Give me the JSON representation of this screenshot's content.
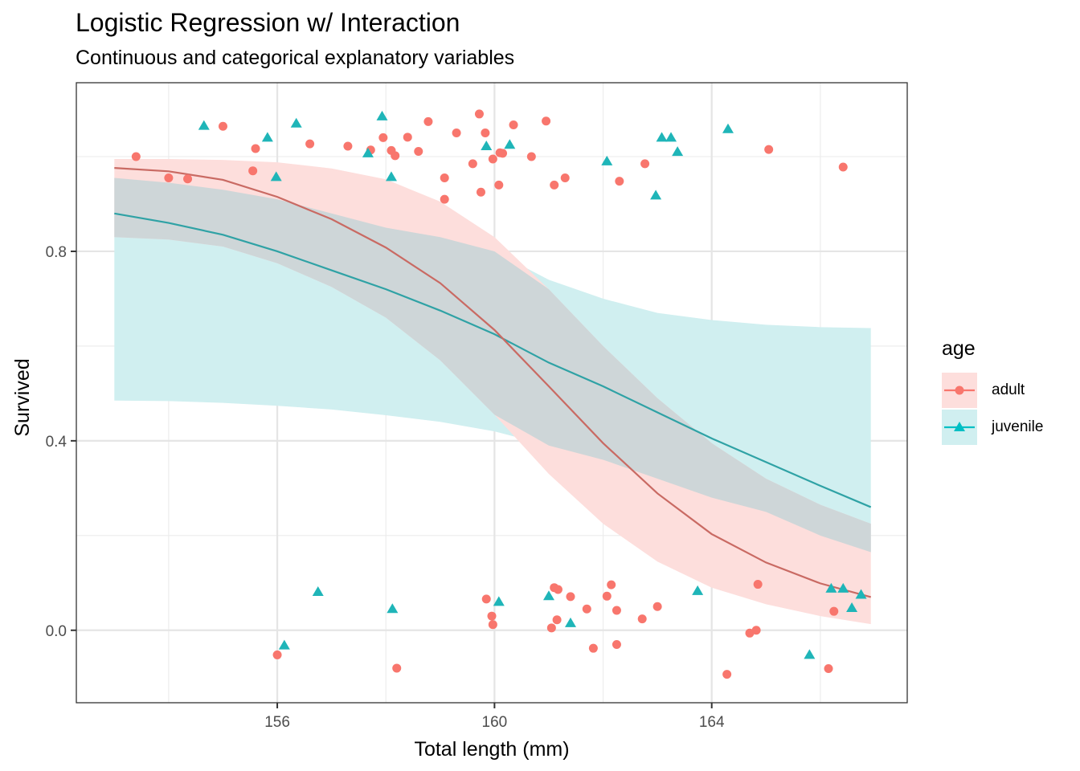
{
  "chart_data": {
    "type": "scatter",
    "title": "Logistic Regression w/ Interaction",
    "subtitle": "Continuous and categorical explanatory variables",
    "xlabel": "Total length (mm)",
    "ylabel": "Survived",
    "xlim": [
      152.3,
      167.6
    ],
    "ylim": [
      -0.153,
      1.156
    ],
    "x_ticks": [
      156,
      160,
      164
    ],
    "x_tick_labels": [
      "156",
      "160",
      "164"
    ],
    "x_minor_ticks": [
      154,
      158,
      162,
      166
    ],
    "y_ticks": [
      0.0,
      0.4,
      0.8
    ],
    "y_tick_labels": [
      "0.0",
      "0.4",
      "0.8"
    ],
    "y_minor_ticks": [
      0.2,
      0.6,
      1.0
    ],
    "grid": true,
    "legend": {
      "title": "age",
      "position": "right",
      "entries": [
        {
          "label": "adult",
          "color": "#F8766D",
          "shape": "circle",
          "fill": "#FDDEDC"
        },
        {
          "label": "juvenile",
          "color": "#00BFC4",
          "shape": "triangle",
          "fill": "#D0EFF0"
        }
      ]
    },
    "colors": {
      "adult_point": "#F8766D",
      "adult_line": "#C96A63",
      "adult_ribbon": "#FDDEDC",
      "juvenile_point": "#1FB5B8",
      "juvenile_line": "#2FA2A5",
      "juvenile_ribbon": "#D0EFF0",
      "overlap": "#CED6D8"
    },
    "series": [
      {
        "name": "adult",
        "fit": {
          "x": [
            153.0,
            154.0,
            155.0,
            156.0,
            157.0,
            158.0,
            159.0,
            160.0,
            161.0,
            162.0,
            163.0,
            164.0,
            165.0,
            166.0,
            166.93
          ],
          "y": [
            0.976,
            0.969,
            0.951,
            0.915,
            0.868,
            0.808,
            0.733,
            0.634,
            0.515,
            0.395,
            0.289,
            0.203,
            0.143,
            0.099,
            0.07
          ],
          "lower": [
            0.83,
            0.825,
            0.81,
            0.775,
            0.725,
            0.66,
            0.57,
            0.455,
            0.33,
            0.225,
            0.145,
            0.09,
            0.055,
            0.03,
            0.013
          ],
          "upper": [
            0.995,
            0.995,
            0.993,
            0.988,
            0.975,
            0.952,
            0.905,
            0.83,
            0.72,
            0.6,
            0.49,
            0.395,
            0.32,
            0.265,
            0.225
          ]
        },
        "points": [
          [
            153.4,
            1.0
          ],
          [
            154.0,
            0.955
          ],
          [
            154.35,
            0.953
          ],
          [
            155.0,
            1.064
          ],
          [
            155.55,
            0.97
          ],
          [
            155.6,
            1.017
          ],
          [
            156.0,
            -0.052
          ],
          [
            156.6,
            1.027
          ],
          [
            157.3,
            1.022
          ],
          [
            157.72,
            1.014
          ],
          [
            157.95,
            1.04
          ],
          [
            158.1,
            1.013
          ],
          [
            158.17,
            1.002
          ],
          [
            158.2,
            -0.08
          ],
          [
            158.4,
            1.041
          ],
          [
            158.6,
            1.011
          ],
          [
            158.78,
            1.074
          ],
          [
            159.08,
            0.955
          ],
          [
            159.08,
            0.91
          ],
          [
            159.3,
            1.05
          ],
          [
            159.6,
            0.985
          ],
          [
            159.72,
            1.09
          ],
          [
            159.75,
            0.925
          ],
          [
            159.83,
            1.05
          ],
          [
            159.85,
            0.066
          ],
          [
            159.95,
            0.03
          ],
          [
            159.97,
            0.995
          ],
          [
            159.97,
            0.012
          ],
          [
            160.08,
            0.94
          ],
          [
            160.1,
            1.008
          ],
          [
            160.15,
            1.007
          ],
          [
            160.35,
            1.067
          ],
          [
            160.68,
            1.0
          ],
          [
            160.95,
            1.075
          ],
          [
            161.05,
            0.005
          ],
          [
            161.1,
            0.09
          ],
          [
            161.1,
            0.94
          ],
          [
            161.15,
            0.022
          ],
          [
            161.17,
            0.086
          ],
          [
            161.3,
            0.955
          ],
          [
            161.4,
            0.071
          ],
          [
            161.7,
            0.045
          ],
          [
            161.82,
            -0.038
          ],
          [
            162.07,
            0.072
          ],
          [
            162.15,
            0.096
          ],
          [
            162.25,
            0.042
          ],
          [
            162.25,
            -0.03
          ],
          [
            162.3,
            0.948
          ],
          [
            162.72,
            0.024
          ],
          [
            162.77,
            0.985
          ],
          [
            163.0,
            0.05
          ],
          [
            164.28,
            -0.093
          ],
          [
            164.7,
            -0.006
          ],
          [
            164.82,
            0.0
          ],
          [
            164.85,
            0.097
          ],
          [
            165.05,
            1.015
          ],
          [
            166.15,
            -0.081
          ],
          [
            166.25,
            0.04
          ],
          [
            166.42,
            0.978
          ]
        ]
      },
      {
        "name": "juvenile",
        "fit": {
          "x": [
            153.0,
            154.0,
            155.0,
            156.0,
            157.0,
            158.0,
            159.0,
            160.0,
            161.0,
            162.0,
            163.0,
            164.0,
            165.0,
            166.0,
            166.93
          ],
          "y": [
            0.88,
            0.86,
            0.835,
            0.8,
            0.76,
            0.72,
            0.675,
            0.625,
            0.565,
            0.515,
            0.46,
            0.405,
            0.355,
            0.305,
            0.26
          ],
          "lower": [
            0.83,
            0.8,
            0.77,
            0.73,
            0.685,
            0.635,
            0.58,
            0.51,
            0.44,
            0.375,
            0.3,
            0.23,
            0.175,
            0.125,
            0.085
          ],
          "upper": [
            0.485,
            0.484,
            0.48,
            0.474,
            0.466,
            0.454,
            0.44,
            0.42,
            0.39,
            0.36,
            0.32,
            0.28,
            0.245,
            0.2,
            0.165
          ],
          "outer_upper": [
            0.955,
            0.945,
            0.93,
            0.91,
            0.88,
            0.85,
            0.83,
            0.8,
            0.74,
            0.7,
            0.67,
            0.655,
            0.645,
            0.64,
            0.638
          ],
          "outer_lower": [
            0.485,
            0.484,
            0.48,
            0.474,
            0.466,
            0.454,
            0.44,
            0.42,
            0.39,
            0.36,
            0.32,
            0.28,
            0.25,
            0.2,
            0.165
          ]
        },
        "points": [
          [
            154.65,
            1.065
          ],
          [
            155.82,
            1.04
          ],
          [
            155.98,
            0.957
          ],
          [
            156.13,
            -0.032
          ],
          [
            156.35,
            1.07
          ],
          [
            156.75,
            0.081
          ],
          [
            157.67,
            1.007
          ],
          [
            157.93,
            1.085
          ],
          [
            158.1,
            0.957
          ],
          [
            158.12,
            0.045
          ],
          [
            159.85,
            1.022
          ],
          [
            160.08,
            0.06
          ],
          [
            160.28,
            1.025
          ],
          [
            161.0,
            0.072
          ],
          [
            161.4,
            0.015
          ],
          [
            162.07,
            0.99
          ],
          [
            162.97,
            0.918
          ],
          [
            163.08,
            1.04
          ],
          [
            163.25,
            1.04
          ],
          [
            163.37,
            1.01
          ],
          [
            163.74,
            0.083
          ],
          [
            164.3,
            1.058
          ],
          [
            165.8,
            -0.052
          ],
          [
            166.2,
            0.088
          ],
          [
            166.42,
            0.088
          ],
          [
            166.58,
            0.047
          ],
          [
            166.75,
            0.075
          ]
        ]
      }
    ]
  }
}
